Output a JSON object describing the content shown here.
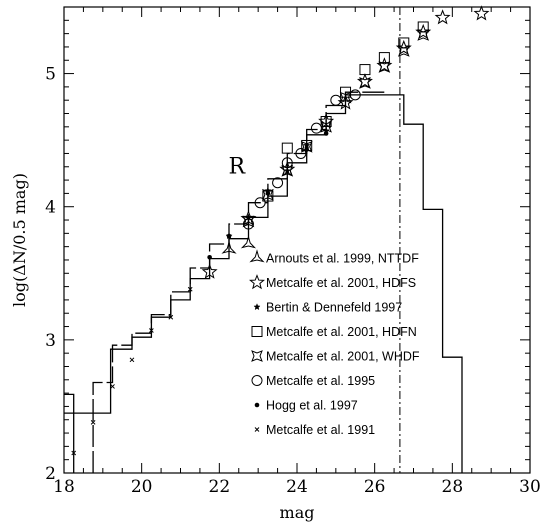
{
  "chart_data": {
    "type": "scatter",
    "panel_label": "R",
    "xlabel": "mag",
    "ylabel": "log(ΔN/0.5 mag)",
    "xlim": [
      18,
      30
    ],
    "ylim": [
      2,
      5.5
    ],
    "x_ticks": [
      18,
      20,
      22,
      24,
      26,
      28,
      30
    ],
    "y_ticks": [
      2,
      3,
      4,
      5
    ],
    "grid": false,
    "legend_position": "lower-right inside plot",
    "vertical_line": {
      "x": 26.65,
      "style": "dash-dot"
    },
    "model_curves": [
      {
        "style": "solid",
        "steps": [
          [
            18.0,
            2.45
          ],
          [
            19.2,
            2.45
          ],
          [
            19.2,
            2.93
          ],
          [
            19.75,
            2.93
          ],
          [
            19.75,
            3.02
          ],
          [
            20.25,
            3.02
          ],
          [
            20.25,
            3.17
          ],
          [
            20.75,
            3.17
          ],
          [
            20.75,
            3.3
          ],
          [
            21.25,
            3.3
          ],
          [
            21.25,
            3.46
          ],
          [
            21.75,
            3.46
          ],
          [
            21.75,
            3.61
          ],
          [
            22.25,
            3.61
          ],
          [
            22.25,
            3.76
          ],
          [
            22.75,
            3.76
          ],
          [
            22.75,
            3.92
          ],
          [
            23.25,
            3.92
          ],
          [
            23.25,
            4.08
          ],
          [
            23.75,
            4.08
          ],
          [
            23.75,
            4.33
          ],
          [
            24.25,
            4.33
          ],
          [
            24.25,
            4.54
          ],
          [
            24.75,
            4.54
          ],
          [
            24.75,
            4.7
          ],
          [
            25.25,
            4.7
          ],
          [
            25.25,
            4.84
          ],
          [
            26.75,
            4.84
          ],
          [
            26.75,
            4.62
          ],
          [
            27.25,
            4.62
          ],
          [
            27.25,
            3.98
          ],
          [
            27.75,
            3.98
          ],
          [
            27.75,
            2.87
          ],
          [
            28.25,
            2.87
          ],
          [
            28.25,
            2.0
          ]
        ]
      },
      {
        "style": "long-dash",
        "steps": [
          [
            18.75,
            2.0
          ],
          [
            18.75,
            2.68
          ],
          [
            19.25,
            2.68
          ],
          [
            19.25,
            2.96
          ],
          [
            19.75,
            2.96
          ],
          [
            19.75,
            3.05
          ],
          [
            20.25,
            3.05
          ],
          [
            20.25,
            3.19
          ],
          [
            20.75,
            3.19
          ],
          [
            20.75,
            3.36
          ],
          [
            21.25,
            3.36
          ],
          [
            21.25,
            3.54
          ],
          [
            21.75,
            3.54
          ],
          [
            21.75,
            3.72
          ],
          [
            22.25,
            3.72
          ],
          [
            22.25,
            3.87
          ],
          [
            22.75,
            3.87
          ],
          [
            22.75,
            4.03
          ],
          [
            23.25,
            4.03
          ],
          [
            23.25,
            4.21
          ],
          [
            23.75,
            4.21
          ],
          [
            23.75,
            4.4
          ],
          [
            24.25,
            4.4
          ],
          [
            24.25,
            4.58
          ],
          [
            24.75,
            4.58
          ],
          [
            24.75,
            4.76
          ],
          [
            25.25,
            4.76
          ],
          [
            25.25,
            4.86
          ],
          [
            26.25,
            4.86
          ]
        ]
      },
      {
        "style": "solid",
        "steps": [
          [
            18.0,
            2.59
          ],
          [
            18.25,
            2.59
          ],
          [
            18.25,
            2.0
          ]
        ]
      }
    ],
    "series": [
      {
        "name": "Arnouts et al. 1999, NTTDF",
        "marker": "three-point-star",
        "points": [
          [
            22.25,
            3.68
          ],
          [
            22.75,
            3.72
          ]
        ]
      },
      {
        "name": "Metcalfe et al. 2001, HDFS",
        "marker": "five-point-star",
        "points": [
          [
            21.75,
            3.51
          ],
          [
            22.75,
            3.91
          ],
          [
            23.75,
            4.28
          ],
          [
            24.75,
            4.64
          ],
          [
            25.25,
            4.78
          ],
          [
            25.75,
            4.94
          ],
          [
            26.25,
            5.06
          ],
          [
            26.75,
            5.19
          ],
          [
            27.25,
            5.31
          ],
          [
            27.75,
            5.42
          ],
          [
            28.75,
            5.45
          ]
        ]
      },
      {
        "name": "Bertin & Dennefeld 1997",
        "marker": "small-star",
        "points": [
          [
            22.25,
            3.78
          ],
          [
            22.75,
            3.92
          ],
          [
            23.25,
            4.12
          ],
          [
            23.75,
            4.27
          ],
          [
            24.25,
            4.46
          ],
          [
            24.75,
            4.57
          ]
        ]
      },
      {
        "name": "Metcalfe et al. 2001, HDFN",
        "marker": "square",
        "points": [
          [
            23.25,
            4.08
          ],
          [
            23.75,
            4.44
          ],
          [
            24.25,
            4.46
          ],
          [
            24.75,
            4.64
          ],
          [
            25.25,
            4.86
          ],
          [
            25.75,
            5.03
          ],
          [
            26.25,
            5.12
          ],
          [
            26.75,
            5.23
          ],
          [
            27.25,
            5.35
          ]
        ]
      },
      {
        "name": "Metcalfe et al. 2001, WHDF",
        "marker": "four-point-star",
        "points": [
          [
            22.75,
            3.89
          ],
          [
            23.25,
            4.09
          ],
          [
            23.75,
            4.27
          ],
          [
            24.25,
            4.45
          ],
          [
            24.75,
            4.6
          ],
          [
            25.25,
            4.82
          ],
          [
            25.75,
            4.93
          ],
          [
            26.25,
            5.05
          ],
          [
            26.75,
            5.17
          ],
          [
            27.25,
            5.29
          ]
        ]
      },
      {
        "name": "Metcalfe et al. 1995",
        "marker": "open-circle",
        "points": [
          [
            22.75,
            3.87
          ],
          [
            23.05,
            4.03
          ],
          [
            23.5,
            4.18
          ],
          [
            23.75,
            4.33
          ],
          [
            24.1,
            4.4
          ],
          [
            24.5,
            4.59
          ],
          [
            25.0,
            4.8
          ],
          [
            25.5,
            4.84
          ]
        ]
      },
      {
        "name": "Hogg et al. 1997",
        "marker": "filled-circle",
        "points": [
          [
            21.75,
            3.62
          ],
          [
            22.25,
            3.78
          ],
          [
            23.25,
            4.1
          ],
          [
            24.25,
            4.43
          ],
          [
            24.75,
            4.55
          ]
        ]
      },
      {
        "name": "Metcalfe et al. 1991",
        "marker": "cross",
        "points": [
          [
            18.25,
            2.15
          ],
          [
            18.75,
            2.38
          ],
          [
            19.25,
            2.65
          ],
          [
            19.75,
            2.85
          ],
          [
            20.25,
            3.07
          ],
          [
            20.75,
            3.17
          ],
          [
            21.25,
            3.38
          ]
        ]
      }
    ]
  }
}
